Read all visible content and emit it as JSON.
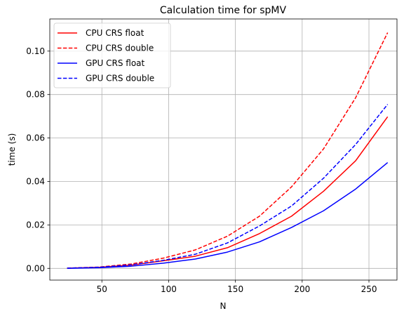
{
  "chart_data": {
    "type": "line",
    "title": "Calculation time for spMV",
    "xlabel": "N",
    "ylabel": "time (s)",
    "xlim": [
      11,
      271
    ],
    "ylim": [
      -0.0054,
      0.1148
    ],
    "grid": true,
    "legend_position": "top-left",
    "x_ticks": [
      50,
      100,
      150,
      200,
      250
    ],
    "x_tick_labels": [
      "50",
      "100",
      "150",
      "200",
      "250"
    ],
    "y_ticks": [
      0.0,
      0.02,
      0.04,
      0.06,
      0.08,
      0.1
    ],
    "y_tick_labels": [
      "0.00",
      "0.02",
      "0.04",
      "0.06",
      "0.08",
      "0.10"
    ],
    "x": [
      24,
      48,
      72,
      96,
      120,
      144,
      168,
      192,
      216,
      240,
      264
    ],
    "series": [
      {
        "name": "CPU CRS float",
        "color": "#ff0000",
        "dash": "solid",
        "values": [
          0.0001,
          0.0005,
          0.0015,
          0.0035,
          0.0056,
          0.0095,
          0.016,
          0.024,
          0.0355,
          0.0495,
          0.0698
        ]
      },
      {
        "name": "CPU CRS double",
        "color": "#ff0000",
        "dash": "dashed",
        "values": [
          0.0001,
          0.0006,
          0.002,
          0.0047,
          0.0085,
          0.0148,
          0.024,
          0.0375,
          0.055,
          0.0785,
          0.1085
        ]
      },
      {
        "name": "GPU CRS float",
        "color": "#0000ff",
        "dash": "solid",
        "values": [
          0.0,
          0.0003,
          0.001,
          0.0024,
          0.0043,
          0.0075,
          0.0122,
          0.0188,
          0.0265,
          0.0365,
          0.0487
        ]
      },
      {
        "name": "GPU CRS double",
        "color": "#0000ff",
        "dash": "dashed",
        "values": [
          0.0001,
          0.0005,
          0.0016,
          0.0037,
          0.0065,
          0.0117,
          0.0195,
          0.0287,
          0.0415,
          0.057,
          0.0755
        ]
      }
    ]
  }
}
